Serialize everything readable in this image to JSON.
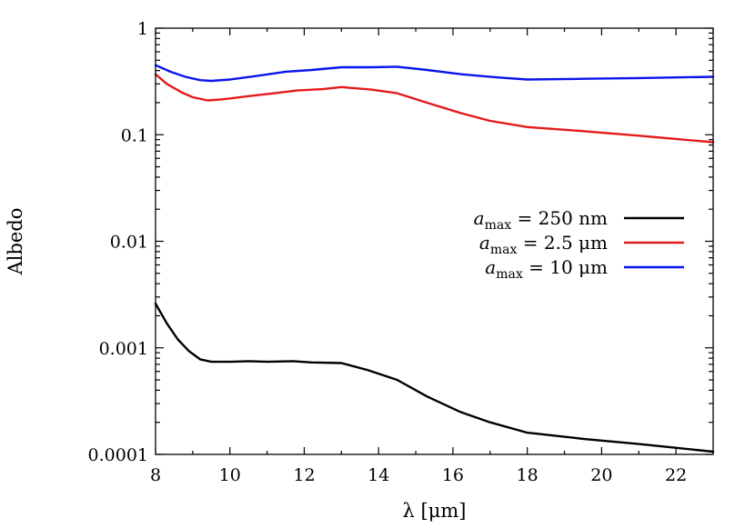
{
  "chart_data": {
    "type": "line",
    "title": "",
    "xlabel": "λ [μm]",
    "ylabel": "Albedo",
    "xlim": [
      8,
      23
    ],
    "ylim": [
      0.0001,
      1
    ],
    "yscale": "log",
    "grid": false,
    "legend_position": "center-right",
    "x_ticks": [
      "8",
      "10",
      "12",
      "14",
      "16",
      "18",
      "20",
      "22"
    ],
    "y_ticks": [
      "1",
      "0.1",
      "0.01",
      "0.001",
      "0.0001"
    ],
    "series": [
      {
        "name": "a_max = 250 nm",
        "legend": {
          "a": "a",
          "sub": "max",
          "rest": " = 250 nm"
        },
        "color": "#000000",
        "x": [
          8.0,
          8.3,
          8.6,
          8.9,
          9.2,
          9.5,
          10.0,
          10.5,
          11.0,
          11.7,
          12.2,
          13.0,
          13.7,
          14.5,
          15.3,
          16.2,
          17.0,
          18.0,
          19.5,
          21.0,
          23.0
        ],
        "y": [
          0.0026,
          0.0017,
          0.0012,
          0.00093,
          0.00078,
          0.00074,
          0.00074,
          0.00075,
          0.00074,
          0.00075,
          0.00073,
          0.00072,
          0.00062,
          0.0005,
          0.00035,
          0.00025,
          0.0002,
          0.00016,
          0.00014,
          0.000125,
          0.000106
        ]
      },
      {
        "name": "a_max = 2.5 μm",
        "legend": {
          "a": "a",
          "sub": "max",
          "rest": " = 2.5 μm"
        },
        "color": "#e41a1c",
        "x": [
          8.0,
          8.3,
          8.7,
          9.0,
          9.4,
          9.8,
          10.5,
          11.2,
          11.8,
          12.5,
          13.0,
          13.8,
          14.5,
          15.3,
          16.2,
          17.0,
          18.0,
          19.5,
          21.0,
          23.0
        ],
        "y": [
          0.37,
          0.3,
          0.25,
          0.225,
          0.21,
          0.215,
          0.23,
          0.245,
          0.26,
          0.268,
          0.28,
          0.265,
          0.245,
          0.2,
          0.16,
          0.135,
          0.118,
          0.108,
          0.098,
          0.085
        ]
      },
      {
        "name": "a_max = 10 μm",
        "legend": {
          "a": "a",
          "sub": "max",
          "rest": " = 10 μm"
        },
        "color": "#0a14ee",
        "x": [
          8.0,
          8.4,
          8.8,
          9.2,
          9.5,
          10.0,
          10.7,
          11.5,
          12.2,
          13.0,
          13.8,
          14.5,
          15.3,
          16.2,
          17.2,
          18.0,
          19.5,
          21.0,
          23.0
        ],
        "y": [
          0.45,
          0.39,
          0.35,
          0.325,
          0.32,
          0.33,
          0.355,
          0.39,
          0.405,
          0.43,
          0.43,
          0.435,
          0.405,
          0.37,
          0.345,
          0.33,
          0.335,
          0.34,
          0.35
        ]
      }
    ]
  }
}
